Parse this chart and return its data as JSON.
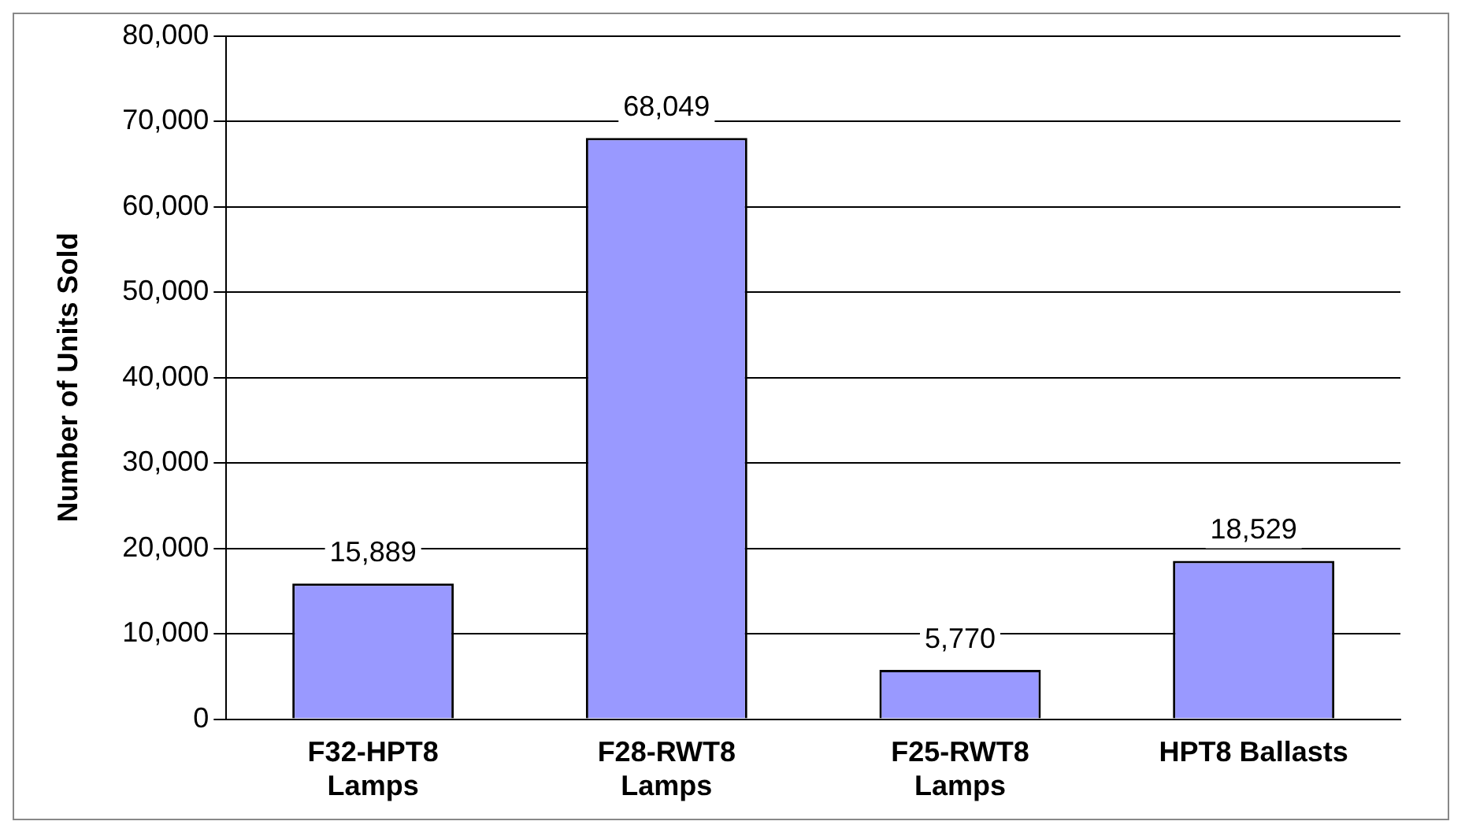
{
  "chart_data": {
    "type": "bar",
    "ylabel": "Number of Units Sold",
    "categories": [
      "F32-HPT8 Lamps",
      "F28-RWT8 Lamps",
      "F25-RWT8 Lamps",
      "HPT8 Ballasts"
    ],
    "values": [
      15889,
      68049,
      5770,
      18529
    ],
    "value_labels": [
      "15,889",
      "68,049",
      "5,770",
      "18,529"
    ],
    "color": "#9999ff",
    "ylim": [
      0,
      80000
    ],
    "yticks": [
      0,
      {
        "value": 10000,
        "label": "10,000"
      },
      {
        "value": 20000,
        "label": "20,000"
      },
      {
        "value": 30000,
        "label": "30,000"
      },
      {
        "value": 40000,
        "label": "40,000"
      },
      {
        "value": 50000,
        "label": "50,000"
      },
      {
        "value": 60000,
        "label": "60,000"
      },
      {
        "value": 70000,
        "label": "70,000"
      },
      {
        "value": 80000,
        "label": "80,000"
      }
    ],
    "grid": "y",
    "legend": false
  }
}
